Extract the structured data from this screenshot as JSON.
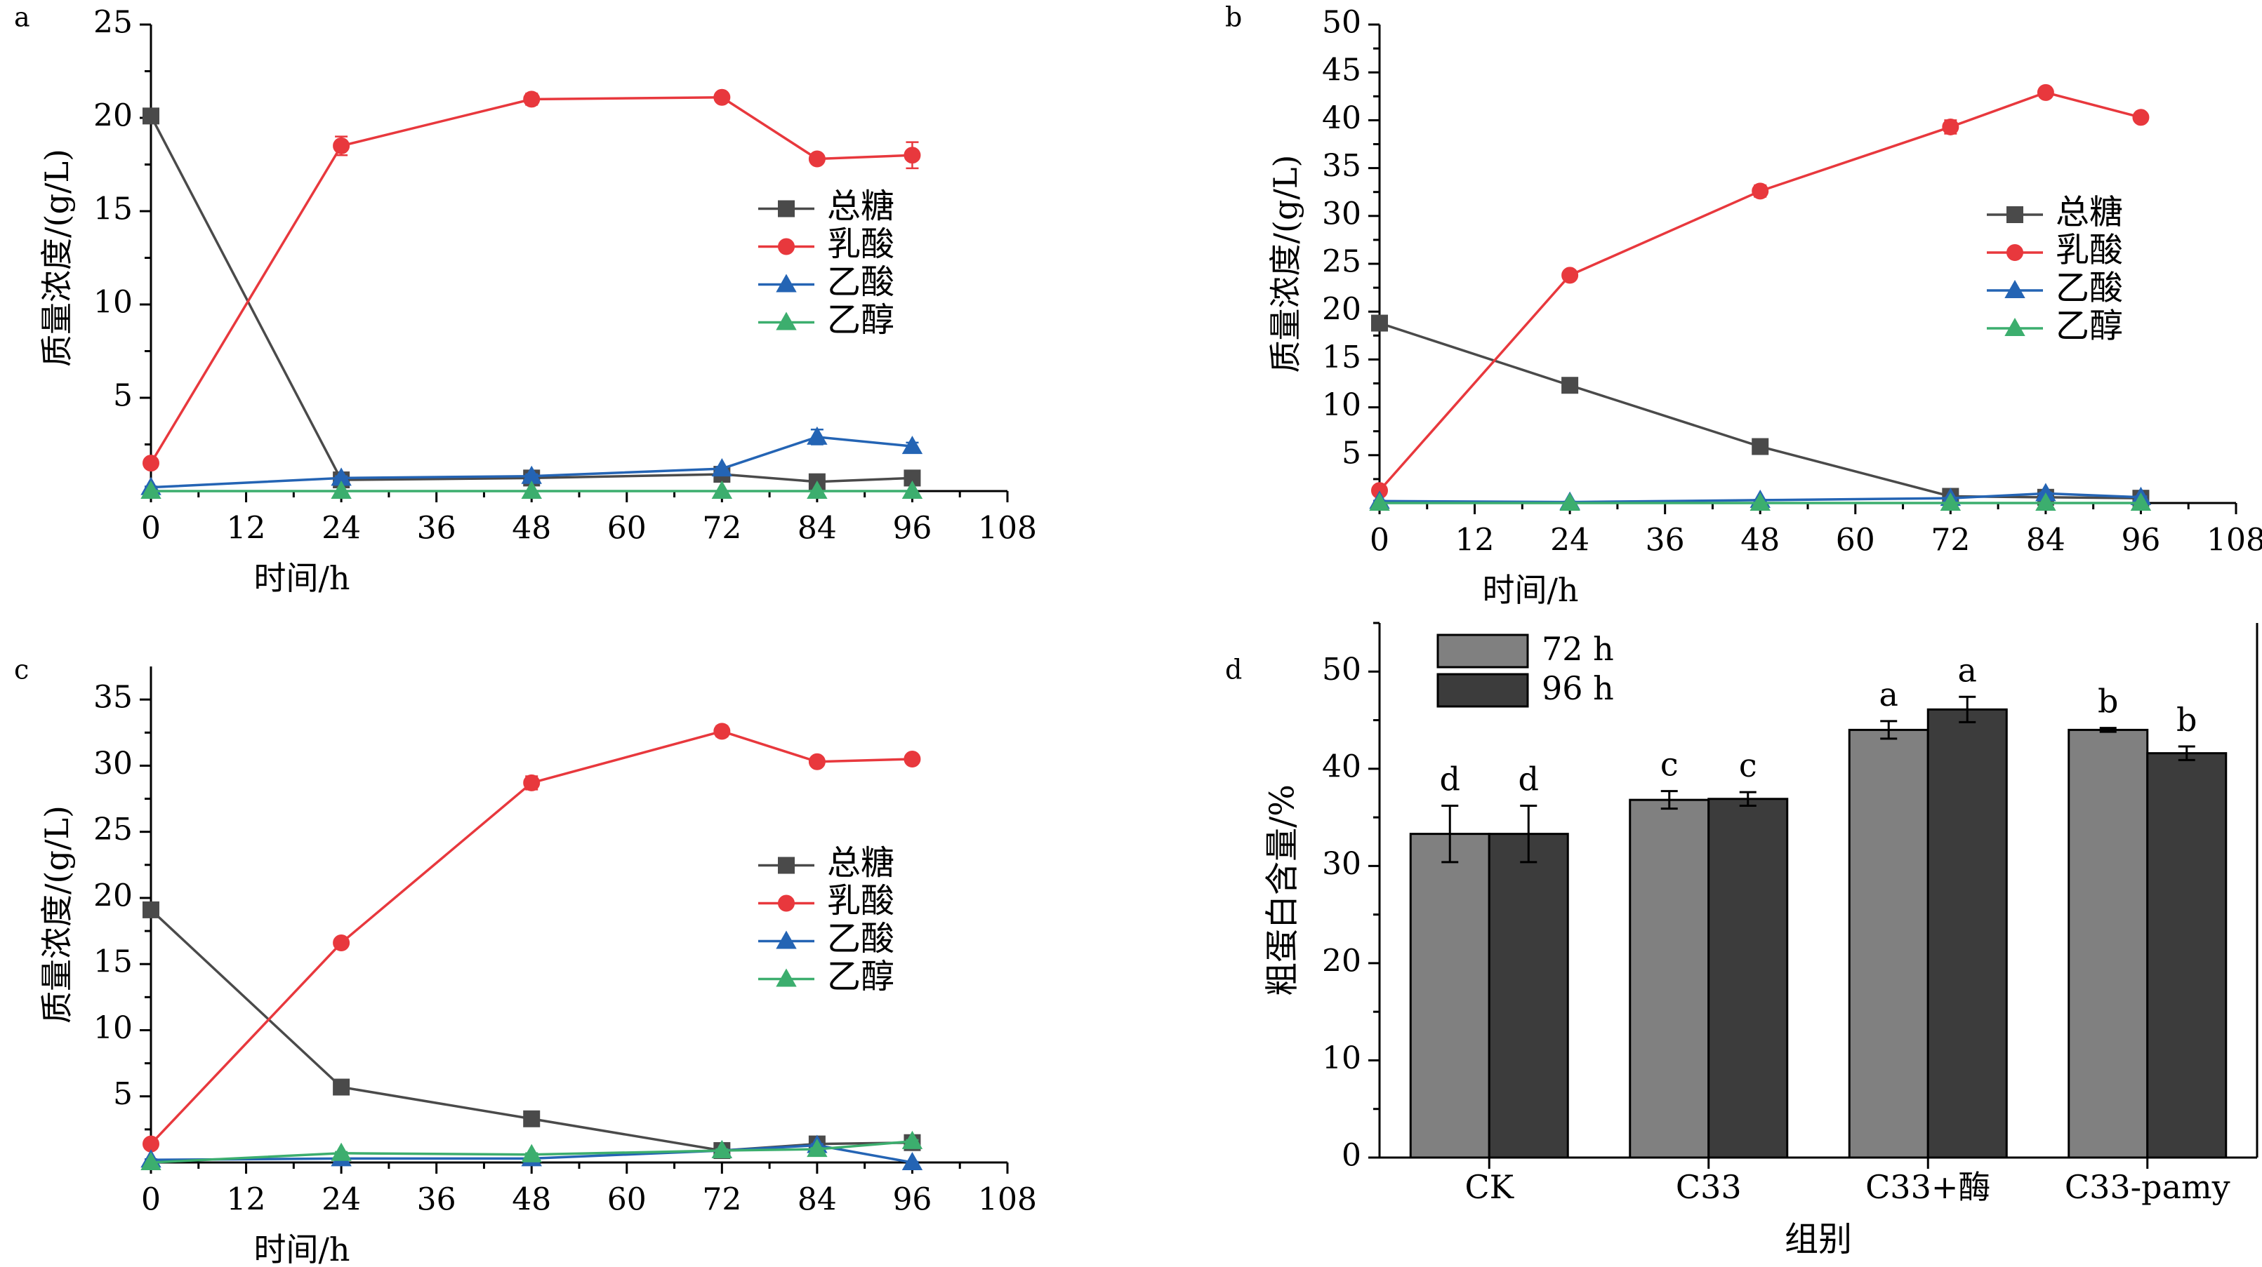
{
  "chart_data": [
    {
      "panel_label": "a",
      "type": "line",
      "xlabel": "时间/h",
      "ylabel": "质量浓度/(g/L)",
      "xlim": [
        0,
        108
      ],
      "ylim": [
        0,
        25
      ],
      "xticks": [
        0,
        12,
        24,
        36,
        48,
        60,
        72,
        84,
        96,
        108
      ],
      "yticks": [
        5,
        10,
        15,
        20,
        25
      ],
      "legend_position": "right-middle",
      "x": [
        0,
        24,
        48,
        72,
        84,
        96
      ],
      "series": [
        {
          "name": "总糖",
          "color": "#4a4a4a",
          "marker": "square",
          "values": [
            20.1,
            0.6,
            0.7,
            0.9,
            0.5,
            0.7
          ],
          "errors": [
            0.2,
            0.1,
            0.1,
            0.1,
            0.1,
            0.1
          ]
        },
        {
          "name": "乳酸",
          "color": "#e8383d",
          "marker": "circle",
          "values": [
            1.5,
            18.5,
            21.0,
            21.1,
            17.8,
            18.0
          ],
          "errors": [
            0.2,
            0.5,
            0.3,
            0.2,
            0.2,
            0.7
          ]
        },
        {
          "name": "乙酸",
          "color": "#2464b4",
          "marker": "triangle",
          "values": [
            0.2,
            0.7,
            0.8,
            1.2,
            2.9,
            2.4
          ],
          "errors": [
            0.05,
            0.1,
            0.1,
            0.1,
            0.4,
            0.2
          ]
        },
        {
          "name": "乙醇",
          "color": "#3cae6e",
          "marker": "triangle",
          "values": [
            0.0,
            0.0,
            0.0,
            0.0,
            0.0,
            0.0
          ],
          "errors": [
            0,
            0,
            0,
            0,
            0,
            0
          ]
        }
      ]
    },
    {
      "panel_label": "b",
      "type": "line",
      "xlabel": "时间/h",
      "ylabel": "质量浓度/(g/L)",
      "xlim": [
        0,
        108
      ],
      "ylim": [
        0,
        50
      ],
      "xticks": [
        0,
        12,
        24,
        36,
        48,
        60,
        72,
        84,
        96,
        108
      ],
      "yticks": [
        5,
        10,
        15,
        20,
        25,
        30,
        35,
        40,
        45,
        50
      ],
      "legend_position": "right-middle",
      "x": [
        0,
        24,
        48,
        72,
        84,
        96
      ],
      "series": [
        {
          "name": "总糖",
          "color": "#4a4a4a",
          "marker": "square",
          "values": [
            18.8,
            12.3,
            5.9,
            0.7,
            0.6,
            0.5
          ],
          "errors": [
            0.2,
            0.3,
            0.2,
            0.1,
            0.1,
            0.1
          ]
        },
        {
          "name": "乳酸",
          "color": "#e8383d",
          "marker": "circle",
          "values": [
            1.3,
            23.8,
            32.6,
            39.3,
            42.9,
            40.3
          ],
          "errors": [
            0.2,
            0.4,
            0.6,
            0.7,
            0.5,
            0.3
          ]
        },
        {
          "name": "乙酸",
          "color": "#2464b4",
          "marker": "triangle",
          "values": [
            0.2,
            0.1,
            0.3,
            0.5,
            1.0,
            0.6
          ],
          "errors": [
            0.05,
            0.05,
            0.05,
            0.05,
            0.1,
            0.1
          ]
        },
        {
          "name": "乙醇",
          "color": "#3cae6e",
          "marker": "triangle",
          "values": [
            0.0,
            0.0,
            0.0,
            0.0,
            0.0,
            0.0
          ],
          "errors": [
            0,
            0,
            0,
            0,
            0,
            0
          ]
        }
      ]
    },
    {
      "panel_label": "c",
      "type": "line",
      "xlabel": "时间/h",
      "ylabel": "质量浓度/(g/L)",
      "xlim": [
        0,
        108
      ],
      "ylim": [
        0,
        37.5
      ],
      "xticks": [
        0,
        12,
        24,
        36,
        48,
        60,
        72,
        84,
        96,
        108
      ],
      "yticks": [
        5,
        10,
        15,
        20,
        25,
        30,
        35
      ],
      "legend_position": "right-middle",
      "x": [
        0,
        24,
        48,
        72,
        84,
        96
      ],
      "series": [
        {
          "name": "总糖",
          "color": "#4a4a4a",
          "marker": "square",
          "values": [
            19.1,
            5.7,
            3.3,
            0.9,
            1.4,
            1.5
          ],
          "errors": [
            0.3,
            0.2,
            0.2,
            0.1,
            0.1,
            0.1
          ]
        },
        {
          "name": "乳酸",
          "color": "#e8383d",
          "marker": "circle",
          "values": [
            1.4,
            16.6,
            28.7,
            32.6,
            30.3,
            30.5
          ],
          "errors": [
            0.2,
            0.3,
            0.5,
            0.4,
            0.2,
            0.2
          ]
        },
        {
          "name": "乙酸",
          "color": "#2464b4",
          "marker": "triangle",
          "values": [
            0.2,
            0.3,
            0.3,
            0.9,
            1.3,
            0.0
          ],
          "errors": [
            0.05,
            0.05,
            0.05,
            0.1,
            0.1,
            0.05
          ]
        },
        {
          "name": "乙醇",
          "color": "#3cae6e",
          "marker": "triangle",
          "values": [
            0.0,
            0.7,
            0.6,
            0.9,
            1.0,
            1.6
          ],
          "errors": [
            0,
            0.1,
            0.1,
            0.1,
            0.1,
            0.1
          ]
        }
      ]
    },
    {
      "panel_label": "d",
      "type": "bar",
      "xlabel": "组别",
      "ylabel": "粗蛋白含量/%",
      "ylim": [
        0,
        55
      ],
      "yticks": [
        0,
        10,
        20,
        30,
        40,
        50
      ],
      "legend_position": "top-left",
      "categories": [
        "CK",
        "C33",
        "C33+酶",
        "C33-pamy"
      ],
      "series": [
        {
          "name": "72 h",
          "color": "#808080",
          "values": [
            33.3,
            36.8,
            44.0,
            44.0
          ],
          "errors": [
            2.9,
            0.9,
            0.9,
            0.2
          ],
          "significance": [
            "d",
            "c",
            "a",
            "b"
          ]
        },
        {
          "name": "96 h",
          "color": "#3c3c3c",
          "values": [
            33.3,
            36.9,
            46.1,
            41.6
          ],
          "errors": [
            2.9,
            0.7,
            1.3,
            0.7
          ],
          "significance": [
            "d",
            "c",
            "a",
            "b"
          ]
        }
      ]
    }
  ]
}
